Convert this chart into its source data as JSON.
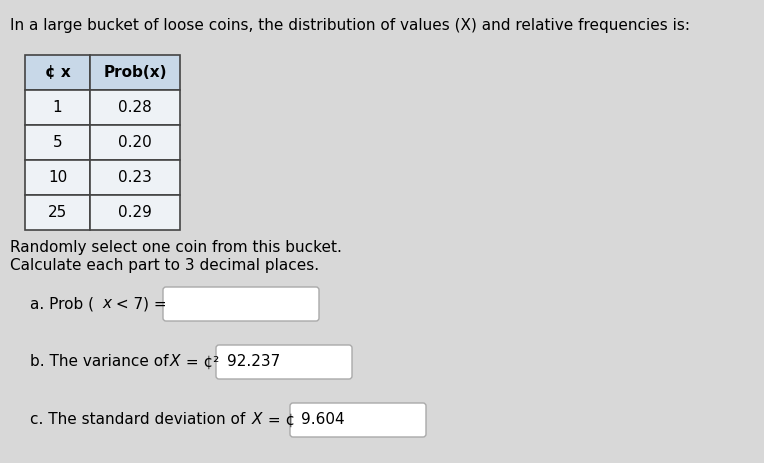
{
  "title": "In a large bucket of loose coins, the distribution of values (X) and relative frequencies is:",
  "title_fontsize": 11,
  "table_x_vals": [
    "1",
    "5",
    "10",
    "25"
  ],
  "table_prob_vals": [
    "0.28",
    "0.20",
    "0.23",
    "0.29"
  ],
  "subtitle_line1": "Randomly select one coin from this bucket.",
  "subtitle_line2": "Calculate each part to 3 decimal places.",
  "subtitle_fontsize": 11,
  "part_b_box": "92.237",
  "part_c_box": "9.604",
  "bg_color": "#d8d8d8",
  "text_color": "#000000",
  "table_border_color": "#444444",
  "header_bg": "#c8d8e8",
  "cell_bg": "#eef2f6",
  "box_fill": "#ffffff",
  "box_border": "#aaaaaa",
  "font_size_parts": 11
}
